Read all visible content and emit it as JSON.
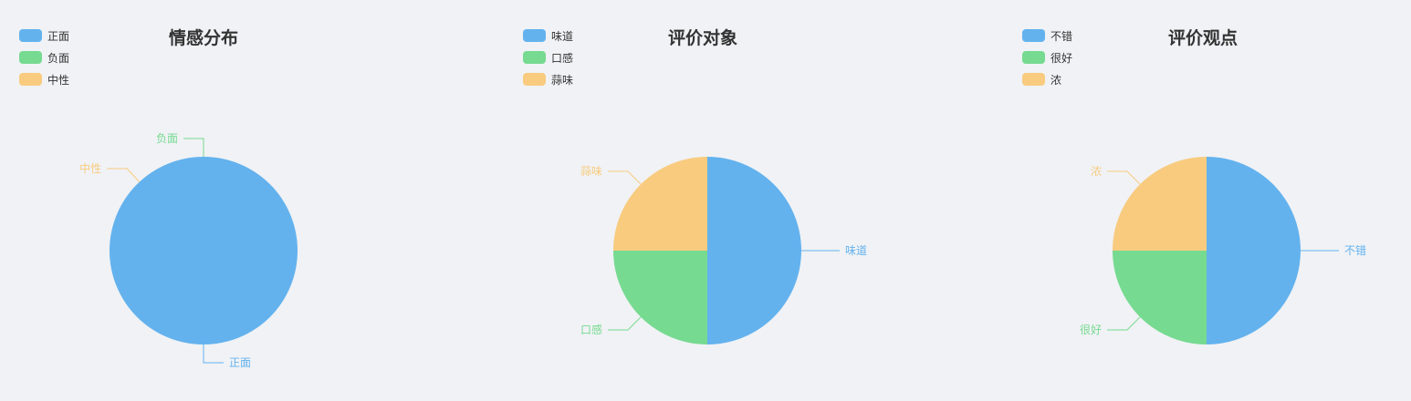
{
  "colors": [
    "#63b2ee",
    "#76da91",
    "#f8cb7f"
  ],
  "chart_data": [
    {
      "type": "pie",
      "title": "情感分布",
      "categories": [
        "正面",
        "负面",
        "中性"
      ],
      "values": [
        1,
        0,
        0
      ],
      "legend": "top-left"
    },
    {
      "type": "pie",
      "title": "评价对象",
      "categories": [
        "味道",
        "口感",
        "蒜味"
      ],
      "values": [
        2,
        1,
        1
      ],
      "legend": "top-left"
    },
    {
      "type": "pie",
      "title": "评价观点",
      "categories": [
        "不错",
        "很好",
        "浓"
      ],
      "values": [
        2,
        1,
        1
      ],
      "legend": "top-left"
    }
  ]
}
